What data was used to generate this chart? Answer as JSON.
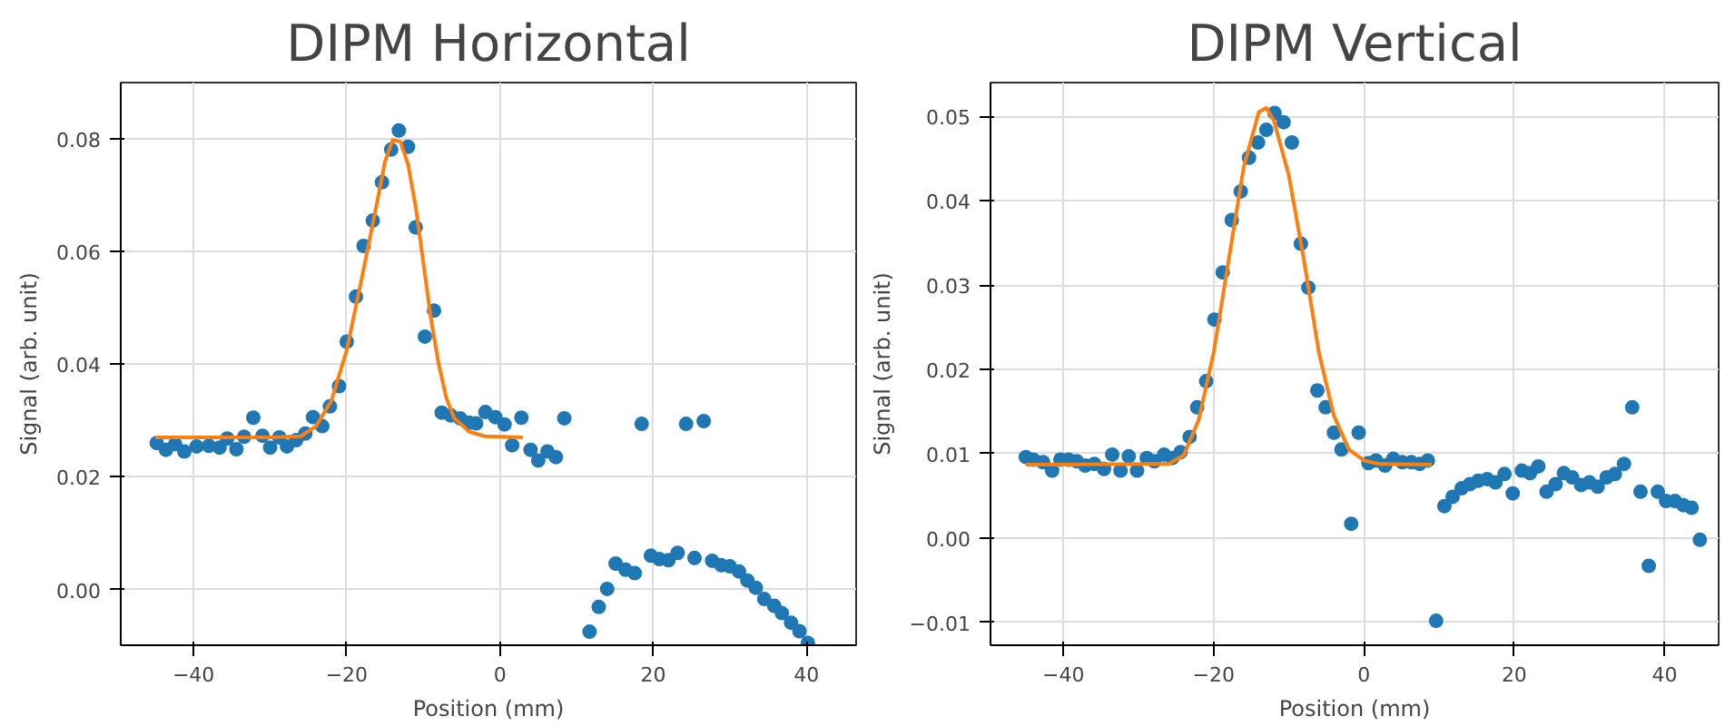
{
  "chart_data": [
    {
      "type": "scatter",
      "title": "DIPM Horizontal",
      "xlabel": "Position (mm)",
      "ylabel": "Signal (arb. unit)",
      "xlim": [
        -49.5,
        46.5
      ],
      "ylim": [
        -0.0099,
        0.09
      ],
      "xticks": [
        -40,
        -20,
        0,
        20,
        40
      ],
      "yticks": [
        {
          "value": 0,
          "label": "0.00"
        },
        {
          "value": 0.02,
          "label": "0.02"
        },
        {
          "value": 0.04,
          "label": "0.04"
        },
        {
          "value": 0.06,
          "label": "0.06"
        },
        {
          "value": 0.08,
          "label": "0.08"
        }
      ],
      "grid": true,
      "line_style": "solid",
      "series": [
        {
          "type": "scatter",
          "marker": "circle",
          "color": "#1f77b4",
          "x": [
            -44.8,
            -43.6,
            -42.4,
            -41.2,
            -39.6,
            -38,
            -36.6,
            -35.6,
            -34.4,
            -33.4,
            -32.2,
            -31,
            -30,
            -28.8,
            -27.8,
            -26.6,
            -25.4,
            -24.4,
            -23.2,
            -22.2,
            -21,
            -20,
            -18.8,
            -17.8,
            -16.6,
            -15.4,
            -14.2,
            -13.2,
            -12,
            -11,
            -9.8,
            -8.6,
            -7.6,
            -6.4,
            -5.2,
            -4,
            -3.1,
            -1.9,
            -0.6,
            0.6,
            1.6,
            2.8,
            4.0,
            5.0,
            6.2,
            7.3,
            8.4,
            11.7,
            12.9,
            14.0,
            15.1,
            16.4,
            17.6,
            18.5,
            19.7,
            20.8,
            22.0,
            23.2,
            24.3,
            25.4,
            26.6,
            27.7,
            28.9,
            30.0,
            31.2,
            32.3,
            33.4,
            34.5,
            35.8,
            36.8,
            38.0,
            39.1,
            40.2
          ],
          "values": [
            0.026,
            0.0248,
            0.0258,
            0.0245,
            0.0254,
            0.0255,
            0.0252,
            0.0268,
            0.0249,
            0.0271,
            0.0305,
            0.0273,
            0.0252,
            0.027,
            0.0254,
            0.0265,
            0.0277,
            0.0306,
            0.029,
            0.0325,
            0.0361,
            0.044,
            0.052,
            0.061,
            0.0655,
            0.0723,
            0.0781,
            0.0815,
            0.0786,
            0.0643,
            0.0449,
            0.0495,
            0.0314,
            0.0309,
            0.0304,
            0.0296,
            0.0295,
            0.0315,
            0.0306,
            0.0293,
            0.0256,
            0.0305,
            0.0248,
            0.0229,
            0.0245,
            0.0235,
            0.0304,
            -0.0075,
            -0.0031,
            0.0001,
            0.0046,
            0.0035,
            0.0029,
            0.0294,
            0.006,
            0.0054,
            0.0052,
            0.0065,
            0.0294,
            0.0056,
            0.0299,
            0.0051,
            0.0043,
            0.0041,
            0.0032,
            0.0016,
            0.0003,
            -0.0017,
            -0.0029,
            -0.0042,
            -0.0059,
            -0.0074,
            -0.0095
          ]
        },
        {
          "type": "line",
          "color": "#ff7f0e",
          "x": [
            -45,
            -30,
            -26,
            -24,
            -22,
            -20,
            -18,
            -16,
            -15,
            -14,
            -13,
            -12,
            -11,
            -10,
            -9,
            -8,
            -7,
            -6,
            -4,
            -2,
            0,
            3
          ],
          "values": [
            0.027,
            0.027,
            0.0272,
            0.029,
            0.0335,
            0.0425,
            0.0555,
            0.069,
            0.076,
            0.0798,
            0.0795,
            0.0755,
            0.068,
            0.058,
            0.048,
            0.04,
            0.034,
            0.0305,
            0.028,
            0.0272,
            0.0271,
            0.027
          ]
        }
      ]
    },
    {
      "type": "scatter",
      "title": "DIPM Vertical",
      "xlabel": "Position (mm)",
      "ylabel": "Signal (arb. unit)",
      "xlim": [
        -49.7,
        47.2
      ],
      "ylim": [
        -0.0127,
        0.054
      ],
      "xticks": [
        -40,
        -20,
        0,
        20,
        40
      ],
      "yticks": [
        {
          "value": -0.01,
          "label": "−0.01"
        },
        {
          "value": 0,
          "label": "0.00"
        },
        {
          "value": 0.01,
          "label": "0.01"
        },
        {
          "value": 0.02,
          "label": "0.02"
        },
        {
          "value": 0.03,
          "label": "0.03"
        },
        {
          "value": 0.04,
          "label": "0.04"
        },
        {
          "value": 0.05,
          "label": "0.05"
        }
      ],
      "grid": true,
      "line_style": "solid",
      "series": [
        {
          "type": "scatter",
          "marker": "circle",
          "color": "#1f77b4",
          "x": [
            -45.0,
            -44.0,
            -42.7,
            -41.5,
            -40.4,
            -39.3,
            -38.2,
            -37.1,
            -35.9,
            -34.6,
            -33.5,
            -32.4,
            -31.3,
            -30.2,
            -28.9,
            -27.9,
            -26.6,
            -25.5,
            -24.4,
            -23.2,
            -22.2,
            -21.0,
            -19.9,
            -18.8,
            -17.6,
            -16.4,
            -15.3,
            -14.1,
            -13.0,
            -11.9,
            -10.7,
            -9.6,
            -8.4,
            -7.4,
            -6.2,
            -5.1,
            -4.0,
            -3.0,
            -1.7,
            -0.7,
            0.6,
            1.6,
            2.8,
            3.9,
            5.1,
            6.3,
            7.4,
            8.5,
            9.6,
            10.7,
            11.8,
            13.0,
            14.1,
            15.2,
            16.4,
            17.5,
            18.7,
            19.8,
            21.0,
            22.1,
            23.2,
            24.3,
            25.5,
            26.6,
            27.7,
            28.9,
            30.0,
            31.1,
            32.3,
            33.4,
            34.6,
            35.7,
            36.8,
            37.9,
            39.1,
            40.2,
            41.4,
            42.5,
            43.6,
            44.7
          ],
          "values": [
            0.0096,
            0.0093,
            0.009,
            0.008,
            0.0093,
            0.0093,
            0.0091,
            0.0086,
            0.0088,
            0.0082,
            0.0099,
            0.008,
            0.0097,
            0.008,
            0.0095,
            0.0091,
            0.0099,
            0.0095,
            0.0102,
            0.012,
            0.0155,
            0.0186,
            0.0259,
            0.0315,
            0.0377,
            0.0411,
            0.0451,
            0.0469,
            0.0484,
            0.0504,
            0.0493,
            0.0469,
            0.0349,
            0.0297,
            0.0175,
            0.0155,
            0.0125,
            0.0105,
            0.0017,
            0.0125,
            0.0089,
            0.0092,
            0.0086,
            0.0094,
            0.009,
            0.009,
            0.0088,
            0.0092,
            -0.0098,
            0.0038,
            0.0049,
            0.0059,
            0.0064,
            0.0068,
            0.007,
            0.0066,
            0.0076,
            0.0053,
            0.008,
            0.0077,
            0.0085,
            0.0055,
            0.0064,
            0.0077,
            0.0072,
            0.0063,
            0.0066,
            0.0061,
            0.0072,
            0.0076,
            0.0088,
            0.0155,
            0.0055,
            -0.0033,
            0.0055,
            0.0044,
            0.0044,
            0.0039,
            0.0036,
            -0.0002
          ]
        },
        {
          "type": "line",
          "color": "#ff7f0e",
          "x": [
            -45,
            -26,
            -24,
            -22,
            -20,
            -18,
            -16,
            -14,
            -13,
            -12,
            -10,
            -8,
            -6,
            -4,
            -2,
            0,
            2,
            9
          ],
          "values": [
            0.0087,
            0.0088,
            0.0098,
            0.014,
            0.022,
            0.033,
            0.044,
            0.0505,
            0.051,
            0.0495,
            0.043,
            0.033,
            0.022,
            0.0145,
            0.0105,
            0.0092,
            0.0088,
            0.0087
          ]
        }
      ]
    }
  ]
}
